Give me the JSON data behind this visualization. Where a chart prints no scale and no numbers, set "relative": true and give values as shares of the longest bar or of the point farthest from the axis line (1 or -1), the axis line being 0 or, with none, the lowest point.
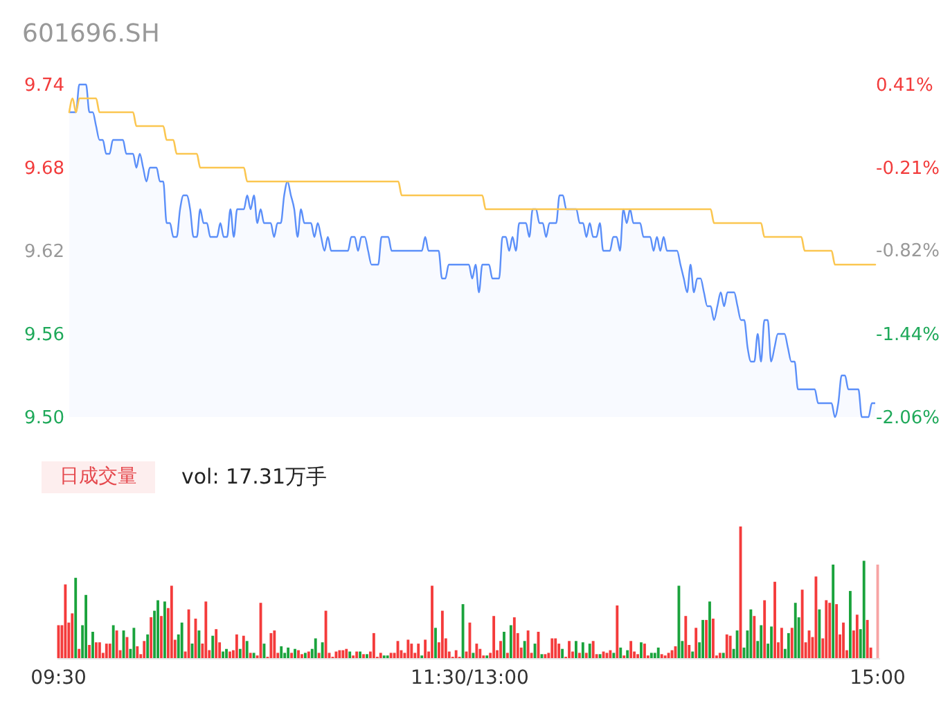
{
  "chart_data": [
    {
      "type": "line",
      "title": "601696.SH",
      "categories": [
        null,
        null,
        null,
        null,
        null,
        null,
        null,
        null,
        null,
        null,
        null,
        null,
        null,
        null,
        null,
        null,
        null,
        null,
        null,
        null,
        null,
        null,
        null,
        null,
        null,
        null,
        null,
        null,
        null,
        null,
        null,
        null,
        null,
        null,
        null,
        null,
        null,
        null,
        null,
        null,
        null,
        null,
        null,
        null,
        null,
        null,
        null,
        null,
        null,
        null,
        null,
        null,
        null,
        null,
        null,
        null,
        null,
        null,
        null,
        null,
        null,
        null,
        null,
        null,
        null,
        null,
        null,
        null,
        null,
        null,
        null,
        null,
        null,
        null,
        null,
        null,
        null,
        null,
        null,
        null,
        null,
        null,
        null,
        null,
        null,
        null,
        null,
        null,
        null,
        null,
        null,
        null,
        null,
        null,
        null,
        null,
        null,
        null,
        null,
        null,
        null,
        null,
        null,
        null,
        null,
        null,
        null,
        null,
        null,
        null,
        null,
        null,
        null,
        null,
        null,
        null,
        null,
        null,
        null,
        null,
        null,
        null,
        null,
        null,
        null,
        null,
        null,
        null,
        null,
        null,
        null,
        null,
        null,
        null,
        null,
        null,
        null,
        null,
        null,
        null,
        null,
        null,
        null,
        null,
        null,
        null,
        null,
        null,
        null,
        null,
        null,
        null,
        null,
        null,
        null,
        null,
        null,
        null,
        null,
        null,
        null,
        null,
        null,
        null,
        null,
        null,
        null,
        null,
        null,
        null,
        null,
        null,
        null,
        null,
        null,
        null,
        null,
        null,
        null,
        null,
        null,
        null,
        null,
        null,
        null,
        null,
        null,
        null,
        null,
        null,
        null,
        null,
        null,
        null,
        null,
        null,
        null,
        null,
        null,
        null,
        null,
        null,
        null,
        null,
        null,
        null,
        null,
        null,
        null,
        null,
        null,
        null,
        null,
        null,
        null,
        null,
        null,
        null,
        null,
        null,
        null,
        null,
        null,
        null,
        null,
        null,
        null,
        null,
        null,
        null,
        null,
        null,
        null,
        null,
        null,
        null,
        null,
        null,
        null,
        null,
        null
      ],
      "series": [
        {
          "type": "area",
          "color": "#5b8ff9",
          "values": [
            9.72,
            9.72,
            9.72,
            9.74,
            9.74,
            9.74,
            9.72,
            9.72,
            9.71,
            9.7,
            9.7,
            9.69,
            9.69,
            9.7,
            9.7,
            9.7,
            9.7,
            9.69,
            9.69,
            9.69,
            9.68,
            9.69,
            9.68,
            9.67,
            9.68,
            9.68,
            9.68,
            9.67,
            9.67,
            9.64,
            9.64,
            9.63,
            9.63,
            9.65,
            9.66,
            9.66,
            9.65,
            9.63,
            9.63,
            9.65,
            9.64,
            9.64,
            9.63,
            9.63,
            9.63,
            9.64,
            9.63,
            9.63,
            9.65,
            9.63,
            9.65,
            9.65,
            9.65,
            9.66,
            9.65,
            9.66,
            9.64,
            9.65,
            9.64,
            9.64,
            9.64,
            9.63,
            9.64,
            9.64,
            9.66,
            9.67,
            9.66,
            9.65,
            9.63,
            9.65,
            9.64,
            9.64,
            9.64,
            9.63,
            9.64,
            9.63,
            9.62,
            9.63,
            9.62,
            9.62,
            9.62,
            9.62,
            9.62,
            9.62,
            9.63,
            9.63,
            9.62,
            9.63,
            9.63,
            9.62,
            9.61,
            9.61,
            9.61,
            9.63,
            9.63,
            9.63,
            9.62,
            9.62,
            9.62,
            9.62,
            9.62,
            9.62,
            9.62,
            9.62,
            9.62,
            9.62,
            9.63,
            9.62,
            9.62,
            9.62,
            9.62,
            9.6,
            9.6,
            9.61,
            9.61,
            9.61,
            9.61,
            9.61,
            9.61,
            9.61,
            9.6,
            9.61,
            9.59,
            9.61,
            9.61,
            9.61,
            9.6,
            9.6,
            9.6,
            9.63,
            9.63,
            9.62,
            9.63,
            9.62,
            9.64,
            9.64,
            9.64,
            9.63,
            9.65,
            9.65,
            9.64,
            9.64,
            9.63,
            9.64,
            9.64,
            9.64,
            9.66,
            9.66,
            9.65,
            9.65,
            9.65,
            9.65,
            9.64,
            9.64,
            9.63,
            9.64,
            9.63,
            9.63,
            9.64,
            9.62,
            9.62,
            9.62,
            9.63,
            9.63,
            9.62,
            9.65,
            9.64,
            9.65,
            9.64,
            9.64,
            9.64,
            9.63,
            9.63,
            9.63,
            9.62,
            9.63,
            9.62,
            9.63,
            9.62,
            9.62,
            9.62,
            9.62,
            9.61,
            9.6,
            9.59,
            9.61,
            9.59,
            9.6,
            9.6,
            9.59,
            9.58,
            9.58,
            9.57,
            9.58,
            9.59,
            9.58,
            9.59,
            9.59,
            9.59,
            9.58,
            9.57,
            9.57,
            9.55,
            9.54,
            9.54,
            9.56,
            9.54,
            9.57,
            9.57,
            9.54,
            9.55,
            9.56,
            9.56,
            9.56,
            9.55,
            9.54,
            9.54,
            9.52,
            9.52,
            9.52,
            9.52,
            9.52,
            9.52,
            9.51,
            9.51,
            9.51,
            9.51,
            9.51,
            9.5,
            9.51,
            9.53,
            9.53,
            9.52,
            9.52,
            9.52,
            9.52,
            9.5,
            9.5,
            9.5,
            9.51,
            9.51
          ]
        },
        {
          "type": "line",
          "color": "#fbc650",
          "values": [
            9.72,
            9.73,
            9.72,
            9.73,
            9.73,
            9.73,
            9.73,
            9.73,
            9.73,
            9.72,
            9.72,
            9.72,
            9.72,
            9.72,
            9.72,
            9.72,
            9.72,
            9.72,
            9.72,
            9.72,
            9.71,
            9.71,
            9.71,
            9.71,
            9.71,
            9.71,
            9.71,
            9.71,
            9.71,
            9.7,
            9.7,
            9.7,
            9.69,
            9.69,
            9.69,
            9.69,
            9.69,
            9.69,
            9.69,
            9.68,
            9.68,
            9.68,
            9.68,
            9.68,
            9.68,
            9.68,
            9.68,
            9.68,
            9.68,
            9.68,
            9.68,
            9.68,
            9.68,
            9.67,
            9.67,
            9.67,
            9.67,
            9.67,
            9.67,
            9.67,
            9.67,
            9.67,
            9.67,
            9.67,
            9.67,
            9.67,
            9.67,
            9.67,
            9.67,
            9.67,
            9.67,
            9.67,
            9.67,
            9.67,
            9.67,
            9.67,
            9.67,
            9.67,
            9.67,
            9.67,
            9.67,
            9.67,
            9.67,
            9.67,
            9.67,
            9.67,
            9.67,
            9.67,
            9.67,
            9.67,
            9.67,
            9.67,
            9.67,
            9.67,
            9.67,
            9.67,
            9.67,
            9.67,
            9.67,
            9.66,
            9.66,
            9.66,
            9.66,
            9.66,
            9.66,
            9.66,
            9.66,
            9.66,
            9.66,
            9.66,
            9.66,
            9.66,
            9.66,
            9.66,
            9.66,
            9.66,
            9.66,
            9.66,
            9.66,
            9.66,
            9.66,
            9.66,
            9.66,
            9.66,
            9.65,
            9.65,
            9.65,
            9.65,
            9.65,
            9.65,
            9.65,
            9.65,
            9.65,
            9.65,
            9.65,
            9.65,
            9.65,
            9.65,
            9.65,
            9.65,
            9.65,
            9.65,
            9.65,
            9.65,
            9.65,
            9.65,
            9.65,
            9.65,
            9.65,
            9.65,
            9.65,
            9.65,
            9.65,
            9.65,
            9.65,
            9.65,
            9.65,
            9.65,
            9.65,
            9.65,
            9.65,
            9.65,
            9.65,
            9.65,
            9.65,
            9.65,
            9.65,
            9.65,
            9.65,
            9.65,
            9.65,
            9.65,
            9.65,
            9.65,
            9.65,
            9.65,
            9.65,
            9.65,
            9.65,
            9.65,
            9.65,
            9.65,
            9.65,
            9.65,
            9.65,
            9.65,
            9.65,
            9.65,
            9.65,
            9.65,
            9.65,
            9.65,
            9.64,
            9.64,
            9.64,
            9.64,
            9.64,
            9.64,
            9.64,
            9.64,
            9.64,
            9.64,
            9.64,
            9.64,
            9.64,
            9.64,
            9.64,
            9.63,
            9.63,
            9.63,
            9.63,
            9.63,
            9.63,
            9.63,
            9.63,
            9.63,
            9.63,
            9.63,
            9.63,
            9.62,
            9.62,
            9.62,
            9.62,
            9.62,
            9.62,
            9.62,
            9.62,
            9.62,
            9.61,
            9.61,
            9.61,
            9.61,
            9.61,
            9.61,
            9.61,
            9.61,
            9.61,
            9.61,
            9.61,
            9.61,
            9.61
          ]
        }
      ],
      "ylim": [
        9.5,
        9.74
      ],
      "yticks": [
        {
          "value": 9.5,
          "label": "9.50"
        },
        9.56,
        9.62,
        9.68,
        9.74
      ],
      "y2lim": [
        -2.06,
        0.41
      ],
      "y2ticks": [
        {
          "value": -2.06,
          "label": "-2.06%"
        },
        {
          "value": -1.44,
          "label": "-1.44%"
        },
        {
          "value": -0.82,
          "label": "-0.82%"
        },
        {
          "value": -0.21,
          "label": "-0.21%"
        },
        {
          "value": 0.41,
          "label": "0.41%"
        }
      ],
      "tick_labels": "y"
    },
    {
      "type": "bar",
      "title": "日成交量",
      "annotations": [
        "vol: 17.31万手"
      ],
      "relative": true,
      "categories": [
        "09:30",
        null,
        null,
        null,
        null,
        null,
        null,
        null,
        null,
        null,
        null,
        null,
        null,
        null,
        null,
        null,
        null,
        null,
        null,
        null,
        null,
        null,
        null,
        null,
        null,
        null,
        null,
        null,
        null,
        null,
        null,
        null,
        null,
        null,
        null,
        null,
        null,
        null,
        null,
        null,
        null,
        null,
        null,
        null,
        null,
        null,
        null,
        null,
        null,
        null,
        null,
        null,
        null,
        null,
        null,
        null,
        null,
        null,
        null,
        null,
        null,
        null,
        null,
        null,
        null,
        null,
        null,
        null,
        null,
        null,
        null,
        null,
        null,
        null,
        null,
        null,
        null,
        null,
        null,
        null,
        null,
        null,
        null,
        null,
        null,
        null,
        null,
        null,
        null,
        null,
        null,
        null,
        null,
        null,
        null,
        null,
        null,
        null,
        null,
        null,
        null,
        null,
        null,
        null,
        null,
        null,
        null,
        null,
        null,
        null,
        null,
        null,
        null,
        null,
        null,
        null,
        null,
        null,
        null,
        null,
        "11:30/13:00",
        null,
        null,
        null,
        null,
        null,
        null,
        null,
        null,
        null,
        null,
        null,
        null,
        null,
        null,
        null,
        null,
        null,
        null,
        null,
        null,
        null,
        null,
        null,
        null,
        null,
        null,
        null,
        null,
        null,
        null,
        null,
        null,
        null,
        null,
        null,
        null,
        null,
        null,
        null,
        null,
        null,
        null,
        null,
        null,
        null,
        null,
        null,
        null,
        null,
        null,
        null,
        null,
        null,
        null,
        null,
        null,
        null,
        null,
        null,
        null,
        null,
        null,
        null,
        null,
        null,
        null,
        null,
        null,
        null,
        null,
        null,
        null,
        null,
        null,
        null,
        null,
        null,
        null,
        null,
        null,
        null,
        null,
        null,
        null,
        null,
        null,
        null,
        null,
        null,
        null,
        null,
        null,
        null,
        null,
        null,
        null,
        null,
        null,
        null,
        null,
        null,
        null,
        null,
        null,
        null,
        null,
        null,
        null,
        null,
        null,
        null,
        null,
        null,
        null,
        null,
        null,
        null,
        null,
        "15:00"
      ],
      "values": [
        0.25,
        0.25,
        0.56,
        0.27,
        0.34,
        0.61,
        0.07,
        0.25,
        0.48,
        0.1,
        0.2,
        0.12,
        0.12,
        0.04,
        0.11,
        0.11,
        0.25,
        0.21,
        0.06,
        0.21,
        0.16,
        0.07,
        0.23,
        0.09,
        0.03,
        0.13,
        0.18,
        0.31,
        0.36,
        0.44,
        0.32,
        0.43,
        0.38,
        0.55,
        0.14,
        0.18,
        0.27,
        0.05,
        0.37,
        0.11,
        0.3,
        0.21,
        0.11,
        0.43,
        0.06,
        0.17,
        0.22,
        0.12,
        0.05,
        0.07,
        0.05,
        0.06,
        0.18,
        0.07,
        0.17,
        0.13,
        0.04,
        0.04,
        0.02,
        0.42,
        0.11,
        0.01,
        0.19,
        0.21,
        0.04,
        0.09,
        0.04,
        0.08,
        0.04,
        0.07,
        0.06,
        0.03,
        0.04,
        0.05,
        0.07,
        0.15,
        0.04,
        0.12,
        0.36,
        0.04,
        0.01,
        0.05,
        0.06,
        0.06,
        0.07,
        0.05,
        0.02,
        0.05,
        0.05,
        0.03,
        0.03,
        0.05,
        0.19,
        0.01,
        0.04,
        0.02,
        0.02,
        0.04,
        0.04,
        0.13,
        0.06,
        0.04,
        0.14,
        0.11,
        0.04,
        0.11,
        0.02,
        0.14,
        0.05,
        0.55,
        0.23,
        0.12,
        0.36,
        0.15,
        0.05,
        0.01,
        0.06,
        0.01,
        0.41,
        0.05,
        0.27,
        0.04,
        0.11,
        0.07,
        0.02,
        0.02,
        0.04,
        0.32,
        0.06,
        0.13,
        0.2,
        0.04,
        0.25,
        0.31,
        0.19,
        0.08,
        0.13,
        0.21,
        0.04,
        0.11,
        0.2,
        0.03,
        0.03,
        0.04,
        0.15,
        0.15,
        0.11,
        0.07,
        0.01,
        0.13,
        0.05,
        0.13,
        0.04,
        0.12,
        0.04,
        0.11,
        0.13,
        0.03,
        0.03,
        0.05,
        0.04,
        0.06,
        0.04,
        0.4,
        0.08,
        0.02,
        0.06,
        0.13,
        0.05,
        0.03,
        0.12,
        0.11,
        0.02,
        0.04,
        0.04,
        0.08,
        0.03,
        0.02,
        0.04,
        0.06,
        0.09,
        0.55,
        0.13,
        0.32,
        0.1,
        0.05,
        0.23,
        0.12,
        0.29,
        0.29,
        0.43,
        0.3,
        0.02,
        0.04,
        0.04,
        0.18,
        0.17,
        0.07,
        0.21,
        1,
        0.08,
        0.21,
        0.37,
        0.32,
        0.13,
        0.25,
        0.44,
        0.11,
        0.24,
        0.58,
        0.12,
        0.23,
        0.07,
        0.19,
        0.23,
        0.42,
        0.31,
        0.52,
        0.12,
        0.21,
        0.16,
        0.62,
        0.37,
        0.15,
        0.44,
        0.42,
        0.71,
        0.41,
        0.18,
        0.27,
        0.06,
        0.51,
        0.21,
        0.33,
        0.22,
        0.74,
        0.29,
        0.08,
        null,
        0.71
      ],
      "colors": [
        "#f43b3b",
        "#f43b3b",
        "#f43b3b",
        "#f43b3b",
        "#f43b3b",
        "#1aa33c",
        "#f43b3b",
        "#1aa33c",
        "#1aa33c",
        "#f43b3b",
        "#1aa33c",
        "#f43b3b",
        "#f43b3b",
        "#f43b3b",
        "#f43b3b",
        "#f43b3b",
        "#1aa33c",
        "#f43b3b",
        "#f43b3b",
        "#1aa33c",
        "#f43b3b",
        "#1aa33c",
        "#1aa33c",
        "#f43b3b",
        "#f43b3b",
        "#f43b3b",
        "#1aa33c",
        "#f43b3b",
        "#1aa33c",
        "#1aa33c",
        "#f43b3b",
        "#1aa33c",
        "#f43b3b",
        "#f43b3b",
        "#f43b3b",
        "#1aa33c",
        "#1aa33c",
        "#f43b3b",
        "#f43b3b",
        "#1aa33c",
        "#f43b3b",
        "#1aa33c",
        "#f43b3b",
        "#f43b3b",
        "#f43b3b",
        "#1aa33c",
        "#f43b3b",
        "#f43b3b",
        "#1aa33c",
        "#1aa33c",
        "#f43b3b",
        "#f43b3b",
        "#f43b3b",
        "#1aa33c",
        "#f43b3b",
        "#1aa33c",
        "#f43b3b",
        "#1aa33c",
        "#f43b3b",
        "#f43b3b",
        "#1aa33c",
        "#f43b3b",
        "#f43b3b",
        "#f43b3b",
        "#f43b3b",
        "#1aa33c",
        "#1aa33c",
        "#1aa33c",
        "#f43b3b",
        "#1aa33c",
        "#f43b3b",
        "#f43b3b",
        "#1aa33c",
        "#f43b3b",
        "#1aa33c",
        "#1aa33c",
        "#f43b3b",
        "#1aa33c",
        "#f43b3b",
        "#f43b3b",
        "#f43b3b",
        "#f43b3b",
        "#f43b3b",
        "#f43b3b",
        "#f43b3b",
        "#1aa33c",
        "#f43b3b",
        "#f43b3b",
        "#1aa33c",
        "#f43b3b",
        "#1aa33c",
        "#f43b3b",
        "#f43b3b",
        "#f43b3b",
        "#f43b3b",
        "#1aa33c",
        "#1aa33c",
        "#f43b3b",
        "#f43b3b",
        "#f43b3b",
        "#f43b3b",
        "#f43b3b",
        "#f43b3b",
        "#f43b3b",
        "#f43b3b",
        "#f43b3b",
        "#1aa33c",
        "#f43b3b",
        "#f43b3b",
        "#f43b3b",
        "#1aa33c",
        "#f43b3b",
        "#f43b3b",
        "#f43b3b",
        "#f43b3b",
        "#f43b3b",
        "#f43b3b",
        "#f43b3b",
        "#1aa33c",
        "#f43b3b",
        "#f43b3b",
        "#1aa33c",
        "#f43b3b",
        "#f43b3b",
        "#f43b3b",
        "#1aa33c",
        "#f43b3b",
        "#f43b3b",
        "#f43b3b",
        "#f43b3b",
        "#1aa33c",
        "#f43b3b",
        "#1aa33c",
        "#f43b3b",
        "#f43b3b",
        "#f43b3b",
        "#1aa33c",
        "#f43b3b",
        "#f43b3b",
        "#1aa33c",
        "#f43b3b",
        "#1aa33c",
        "#f43b3b",
        "#f43b3b",
        "#f43b3b",
        "#f43b3b",
        "#f43b3b",
        "#1aa33c",
        "#f43b3b",
        "#f43b3b",
        "#f43b3b",
        "#1aa33c",
        "#f43b3b",
        "#1aa33c",
        "#f43b3b",
        "#1aa33c",
        "#f43b3b",
        "#f43b3b",
        "#1aa33c",
        "#f43b3b",
        "#f43b3b",
        "#f43b3b",
        "#1aa33c",
        "#f43b3b",
        "#1aa33c",
        "#f43b3b",
        "#1aa33c",
        "#f43b3b",
        "#f43b3b",
        "#f43b3b",
        "#1aa33c",
        "#f43b3b",
        "#f43b3b",
        "#1aa33c",
        "#1aa33c",
        "#1aa33c",
        "#f43b3b",
        "#f43b3b",
        "#f43b3b",
        "#f43b3b",
        "#f43b3b",
        "#1aa33c",
        "#1aa33c",
        "#f43b3b",
        "#f43b3b",
        "#1aa33c",
        "#f43b3b",
        "#1aa33c",
        "#1aa33c",
        "#f43b3b",
        "#1aa33c",
        "#f43b3b",
        "#f43b3b",
        "#f43b3b",
        "#1aa33c",
        "#f43b3b",
        "#f43b3b",
        "#1aa33c",
        "#1aa33c",
        "#f43b3b",
        "#1aa33c",
        "#1aa33c",
        "#1aa33c",
        "#f43b3b",
        "#1aa33c",
        "#1aa33c",
        "#f43b3b",
        "#1aa33c",
        "#1aa33c",
        "#f43b3b",
        "#f43b3b",
        "#f43b3b",
        "#1aa33c",
        "#1aa33c",
        "#f43b3b",
        "#1aa33c",
        "#1aa33c",
        "#f43b3b",
        "#f43b3b",
        "#f43b3b",
        "#f43b3b",
        "#f43b3b",
        "#1aa33c",
        "#f43b3b",
        "#f43b3b",
        "#f43b3b",
        "#1aa33c",
        "#f43b3b",
        "#f43b3b",
        "#f43b3b",
        "#f43b3b",
        "#1aa33c",
        "#f43b3b",
        "#f43b3b",
        "#1aa33c",
        "#1aa33c",
        "#f43b3b",
        "#f43b3b",
        "#f43b3b",
        "#f7a4a4"
      ]
    }
  ]
}
